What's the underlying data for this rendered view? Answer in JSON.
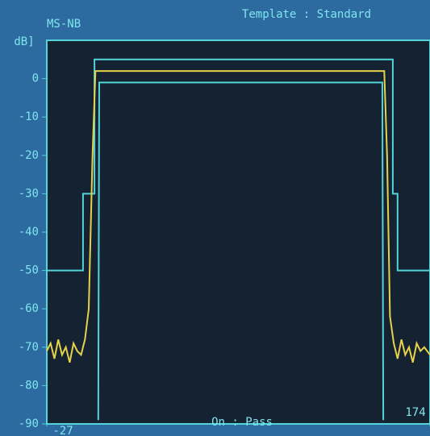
{
  "chart_data": {
    "type": "line",
    "title": "MS-NB",
    "subtitle": "Template : Standard",
    "y_label": "dB]",
    "status": "On : Pass",
    "xlim": [
      -27,
      174
    ],
    "xticks": [
      -27,
      174
    ],
    "ylim": [
      -90,
      10
    ],
    "yticks": [
      0,
      -10,
      -20,
      -30,
      -40,
      -50,
      -60,
      -70,
      -80,
      -90
    ],
    "series": [
      {
        "color": "#52d4d9",
        "x": [
          -27,
          -8,
          -8,
          -2,
          -2,
          154.5,
          154.5,
          157,
          157,
          174
        ],
        "values": [
          -50,
          -50,
          -30,
          -30,
          5,
          5,
          -30,
          -30,
          -50,
          -50
        ]
      },
      {
        "color": "#52d4d9",
        "x": [
          0,
          0.5,
          149,
          149.5
        ],
        "values": [
          -89,
          -1,
          -1,
          -89
        ]
      },
      {
        "color": "#e6d24a",
        "x": [
          -27,
          -25,
          -23,
          -21,
          -19,
          -17,
          -15,
          -13,
          -11,
          -9,
          -7,
          -5,
          -3,
          -1.5,
          150,
          151.5,
          153,
          155,
          157,
          159,
          161,
          163,
          165,
          167,
          169,
          171,
          174
        ],
        "values": [
          -71,
          -69,
          -73,
          -68,
          -72,
          -70,
          -74,
          -69,
          -71,
          -72,
          -68,
          -60,
          -20,
          2,
          2,
          -20,
          -62,
          -69,
          -73,
          -68,
          -72,
          -70,
          -74,
          -69,
          -71,
          -70,
          -72
        ]
      }
    ]
  }
}
